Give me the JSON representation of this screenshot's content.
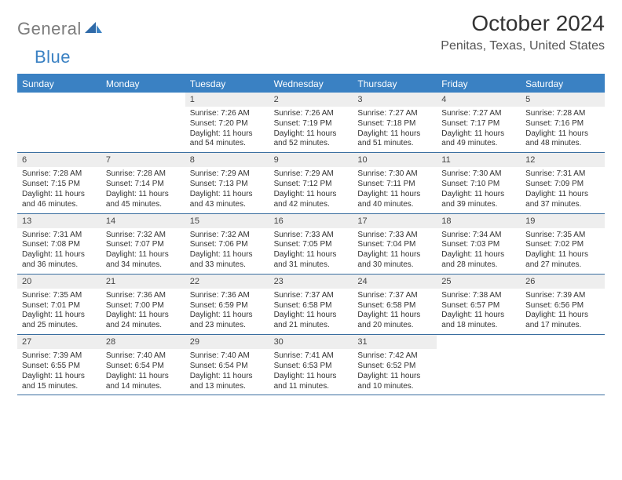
{
  "logo": {
    "general": "General",
    "blue": "Blue"
  },
  "title": "October 2024",
  "location": "Penitas, Texas, United States",
  "colors": {
    "accent": "#3a81c3",
    "weekday_bg": "#3a81c3",
    "weekday_fg": "#ffffff",
    "daynum_bg": "#eeeeee",
    "week_border": "#3a6ea0",
    "logo_gray": "#7c7c7c",
    "text": "#333333"
  },
  "layout": {
    "columns": 7,
    "rows": 5,
    "cell_fontsize": 10,
    "header_fontsize": 28
  },
  "weekdays": [
    "Sunday",
    "Monday",
    "Tuesday",
    "Wednesday",
    "Thursday",
    "Friday",
    "Saturday"
  ],
  "weeks": [
    [
      {
        "empty": true
      },
      {
        "empty": true
      },
      {
        "day": "1",
        "sunrise": "Sunrise: 7:26 AM",
        "sunset": "Sunset: 7:20 PM",
        "daylight1": "Daylight: 11 hours",
        "daylight2": "and 54 minutes."
      },
      {
        "day": "2",
        "sunrise": "Sunrise: 7:26 AM",
        "sunset": "Sunset: 7:19 PM",
        "daylight1": "Daylight: 11 hours",
        "daylight2": "and 52 minutes."
      },
      {
        "day": "3",
        "sunrise": "Sunrise: 7:27 AM",
        "sunset": "Sunset: 7:18 PM",
        "daylight1": "Daylight: 11 hours",
        "daylight2": "and 51 minutes."
      },
      {
        "day": "4",
        "sunrise": "Sunrise: 7:27 AM",
        "sunset": "Sunset: 7:17 PM",
        "daylight1": "Daylight: 11 hours",
        "daylight2": "and 49 minutes."
      },
      {
        "day": "5",
        "sunrise": "Sunrise: 7:28 AM",
        "sunset": "Sunset: 7:16 PM",
        "daylight1": "Daylight: 11 hours",
        "daylight2": "and 48 minutes."
      }
    ],
    [
      {
        "day": "6",
        "sunrise": "Sunrise: 7:28 AM",
        "sunset": "Sunset: 7:15 PM",
        "daylight1": "Daylight: 11 hours",
        "daylight2": "and 46 minutes."
      },
      {
        "day": "7",
        "sunrise": "Sunrise: 7:28 AM",
        "sunset": "Sunset: 7:14 PM",
        "daylight1": "Daylight: 11 hours",
        "daylight2": "and 45 minutes."
      },
      {
        "day": "8",
        "sunrise": "Sunrise: 7:29 AM",
        "sunset": "Sunset: 7:13 PM",
        "daylight1": "Daylight: 11 hours",
        "daylight2": "and 43 minutes."
      },
      {
        "day": "9",
        "sunrise": "Sunrise: 7:29 AM",
        "sunset": "Sunset: 7:12 PM",
        "daylight1": "Daylight: 11 hours",
        "daylight2": "and 42 minutes."
      },
      {
        "day": "10",
        "sunrise": "Sunrise: 7:30 AM",
        "sunset": "Sunset: 7:11 PM",
        "daylight1": "Daylight: 11 hours",
        "daylight2": "and 40 minutes."
      },
      {
        "day": "11",
        "sunrise": "Sunrise: 7:30 AM",
        "sunset": "Sunset: 7:10 PM",
        "daylight1": "Daylight: 11 hours",
        "daylight2": "and 39 minutes."
      },
      {
        "day": "12",
        "sunrise": "Sunrise: 7:31 AM",
        "sunset": "Sunset: 7:09 PM",
        "daylight1": "Daylight: 11 hours",
        "daylight2": "and 37 minutes."
      }
    ],
    [
      {
        "day": "13",
        "sunrise": "Sunrise: 7:31 AM",
        "sunset": "Sunset: 7:08 PM",
        "daylight1": "Daylight: 11 hours",
        "daylight2": "and 36 minutes."
      },
      {
        "day": "14",
        "sunrise": "Sunrise: 7:32 AM",
        "sunset": "Sunset: 7:07 PM",
        "daylight1": "Daylight: 11 hours",
        "daylight2": "and 34 minutes."
      },
      {
        "day": "15",
        "sunrise": "Sunrise: 7:32 AM",
        "sunset": "Sunset: 7:06 PM",
        "daylight1": "Daylight: 11 hours",
        "daylight2": "and 33 minutes."
      },
      {
        "day": "16",
        "sunrise": "Sunrise: 7:33 AM",
        "sunset": "Sunset: 7:05 PM",
        "daylight1": "Daylight: 11 hours",
        "daylight2": "and 31 minutes."
      },
      {
        "day": "17",
        "sunrise": "Sunrise: 7:33 AM",
        "sunset": "Sunset: 7:04 PM",
        "daylight1": "Daylight: 11 hours",
        "daylight2": "and 30 minutes."
      },
      {
        "day": "18",
        "sunrise": "Sunrise: 7:34 AM",
        "sunset": "Sunset: 7:03 PM",
        "daylight1": "Daylight: 11 hours",
        "daylight2": "and 28 minutes."
      },
      {
        "day": "19",
        "sunrise": "Sunrise: 7:35 AM",
        "sunset": "Sunset: 7:02 PM",
        "daylight1": "Daylight: 11 hours",
        "daylight2": "and 27 minutes."
      }
    ],
    [
      {
        "day": "20",
        "sunrise": "Sunrise: 7:35 AM",
        "sunset": "Sunset: 7:01 PM",
        "daylight1": "Daylight: 11 hours",
        "daylight2": "and 25 minutes."
      },
      {
        "day": "21",
        "sunrise": "Sunrise: 7:36 AM",
        "sunset": "Sunset: 7:00 PM",
        "daylight1": "Daylight: 11 hours",
        "daylight2": "and 24 minutes."
      },
      {
        "day": "22",
        "sunrise": "Sunrise: 7:36 AM",
        "sunset": "Sunset: 6:59 PM",
        "daylight1": "Daylight: 11 hours",
        "daylight2": "and 23 minutes."
      },
      {
        "day": "23",
        "sunrise": "Sunrise: 7:37 AM",
        "sunset": "Sunset: 6:58 PM",
        "daylight1": "Daylight: 11 hours",
        "daylight2": "and 21 minutes."
      },
      {
        "day": "24",
        "sunrise": "Sunrise: 7:37 AM",
        "sunset": "Sunset: 6:58 PM",
        "daylight1": "Daylight: 11 hours",
        "daylight2": "and 20 minutes."
      },
      {
        "day": "25",
        "sunrise": "Sunrise: 7:38 AM",
        "sunset": "Sunset: 6:57 PM",
        "daylight1": "Daylight: 11 hours",
        "daylight2": "and 18 minutes."
      },
      {
        "day": "26",
        "sunrise": "Sunrise: 7:39 AM",
        "sunset": "Sunset: 6:56 PM",
        "daylight1": "Daylight: 11 hours",
        "daylight2": "and 17 minutes."
      }
    ],
    [
      {
        "day": "27",
        "sunrise": "Sunrise: 7:39 AM",
        "sunset": "Sunset: 6:55 PM",
        "daylight1": "Daylight: 11 hours",
        "daylight2": "and 15 minutes."
      },
      {
        "day": "28",
        "sunrise": "Sunrise: 7:40 AM",
        "sunset": "Sunset: 6:54 PM",
        "daylight1": "Daylight: 11 hours",
        "daylight2": "and 14 minutes."
      },
      {
        "day": "29",
        "sunrise": "Sunrise: 7:40 AM",
        "sunset": "Sunset: 6:54 PM",
        "daylight1": "Daylight: 11 hours",
        "daylight2": "and 13 minutes."
      },
      {
        "day": "30",
        "sunrise": "Sunrise: 7:41 AM",
        "sunset": "Sunset: 6:53 PM",
        "daylight1": "Daylight: 11 hours",
        "daylight2": "and 11 minutes."
      },
      {
        "day": "31",
        "sunrise": "Sunrise: 7:42 AM",
        "sunset": "Sunset: 6:52 PM",
        "daylight1": "Daylight: 11 hours",
        "daylight2": "and 10 minutes."
      },
      {
        "empty": true
      },
      {
        "empty": true
      }
    ]
  ]
}
